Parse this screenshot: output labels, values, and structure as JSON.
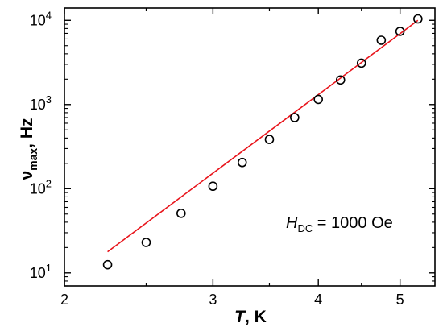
{
  "chart_data": {
    "type": "scatter",
    "x_scale": "log",
    "y_scale": "log",
    "xlim": [
      2,
      5.5
    ],
    "ylim": [
      7,
      14000
    ],
    "xlabel": {
      "main": "T",
      "unit": ", K"
    },
    "ylabel": {
      "main": "ν",
      "sub": "max",
      "unit": ", Hz"
    },
    "x_ticks": [
      {
        "value": 2,
        "label": "2"
      },
      {
        "value": 3,
        "label": "3"
      },
      {
        "value": 4,
        "label": "4"
      },
      {
        "value": 5,
        "label": "5"
      }
    ],
    "x_minor_ticks": [
      2.5,
      3.5,
      4.5
    ],
    "y_ticks": [
      {
        "value": 10,
        "base": "10",
        "exp": "1"
      },
      {
        "value": 100,
        "base": "10",
        "exp": "2"
      },
      {
        "value": 1000,
        "base": "10",
        "exp": "3"
      },
      {
        "value": 10000,
        "base": "10",
        "exp": "4"
      }
    ],
    "series": [
      {
        "kind": "markers",
        "marker": "open-circle",
        "color": "#000000",
        "x": [
          2.25,
          2.5,
          2.75,
          3.0,
          3.25,
          3.5,
          3.75,
          4.0,
          4.25,
          4.5,
          4.75,
          5.0,
          5.25
        ],
        "y": [
          12.5,
          23,
          51,
          107,
          205,
          385,
          700,
          1150,
          1960,
          3100,
          5800,
          7400,
          10400
        ]
      },
      {
        "kind": "fit-line",
        "color": "#e8141b",
        "x": [
          2.25,
          5.25
        ],
        "y": [
          17.8,
          10000
        ]
      }
    ],
    "annotation": {
      "main": "H",
      "sub": "DC",
      "rest": " = 1000 Oe"
    },
    "grid": false,
    "legend": "none"
  }
}
